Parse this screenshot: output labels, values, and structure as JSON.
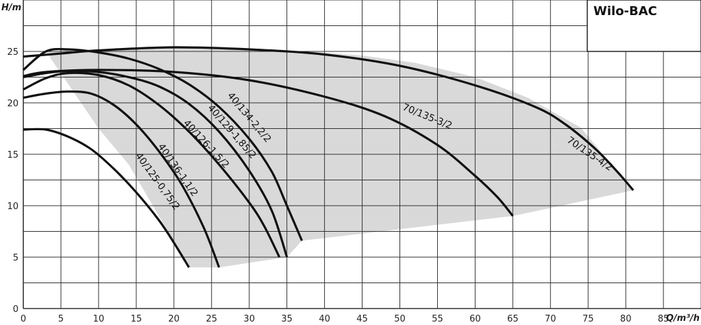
{
  "chart_data": {
    "type": "line",
    "title": "Wilo-BAC",
    "xlabel": "Q/m³/h",
    "ylabel": "H/m",
    "xlim": [
      0,
      90
    ],
    "ylim": [
      0,
      30
    ],
    "x_ticks": [
      0,
      5,
      10,
      15,
      20,
      25,
      30,
      35,
      40,
      45,
      50,
      55,
      60,
      65,
      70,
      75,
      80,
      85
    ],
    "y_ticks": [
      0,
      5,
      10,
      15,
      20,
      25
    ],
    "grid": true,
    "envelope": {
      "description_color": "#d9d9d9",
      "points": [
        [
          3,
          25.0
        ],
        [
          10,
          25.1
        ],
        [
          20,
          25.3
        ],
        [
          30,
          25.2
        ],
        [
          38,
          25.0
        ],
        [
          45,
          24.6
        ],
        [
          52,
          23.9
        ],
        [
          60,
          22.5
        ],
        [
          67,
          20.5
        ],
        [
          74,
          17.6
        ],
        [
          81,
          11.5
        ],
        [
          65,
          9.0
        ],
        [
          37,
          6.6
        ],
        [
          35,
          5.0
        ],
        [
          26,
          4.0
        ],
        [
          22,
          4.0
        ],
        [
          14,
          14.0
        ],
        [
          10,
          17.5
        ]
      ]
    },
    "series": [
      {
        "name": "40/125-0,75/2",
        "points": [
          [
            0,
            17.4
          ],
          [
            3,
            17.4
          ],
          [
            6,
            16.7
          ],
          [
            9,
            15.5
          ],
          [
            12,
            13.6
          ],
          [
            15,
            11.3
          ],
          [
            18,
            8.6
          ],
          [
            20,
            6.4
          ],
          [
            22,
            4.0
          ]
        ],
        "label_at": [
          17.5,
          12.2
        ],
        "label_angle": 54
      },
      {
        "name": "40/136-1,1/2",
        "points": [
          [
            0,
            20.5
          ],
          [
            3,
            20.9
          ],
          [
            6,
            21.1
          ],
          [
            9,
            20.9
          ],
          [
            12,
            19.8
          ],
          [
            15,
            17.9
          ],
          [
            18,
            15.3
          ],
          [
            21,
            12.1
          ],
          [
            24,
            7.8
          ],
          [
            26,
            4.0
          ]
        ],
        "label_at": [
          20.2,
          13.3
        ],
        "label_angle": 55
      },
      {
        "name": "40/126-1,5/2",
        "points": [
          [
            0,
            21.3
          ],
          [
            3,
            22.4
          ],
          [
            6,
            22.9
          ],
          [
            10,
            22.7
          ],
          [
            14,
            21.7
          ],
          [
            18,
            19.8
          ],
          [
            22,
            17.2
          ],
          [
            26,
            14.0
          ],
          [
            30,
            10.3
          ],
          [
            32,
            8.0
          ],
          [
            34,
            5.0
          ]
        ],
        "label_at": [
          24.0,
          15.8
        ],
        "label_angle": 47
      },
      {
        "name": "40/129-1,85/2",
        "points": [
          [
            0,
            22.5
          ],
          [
            3,
            22.9
          ],
          [
            6,
            23.1
          ],
          [
            10,
            23.0
          ],
          [
            14,
            22.5
          ],
          [
            18,
            21.6
          ],
          [
            22,
            19.9
          ],
          [
            26,
            17.2
          ],
          [
            30,
            13.4
          ],
          [
            33,
            9.5
          ],
          [
            35,
            5.0
          ]
        ],
        "label_at": [
          27.4,
          17.0
        ],
        "label_angle": 49
      },
      {
        "name": "40/134-2,2/2",
        "points": [
          [
            0,
            23.2
          ],
          [
            3,
            25.0
          ],
          [
            6,
            25.2
          ],
          [
            10,
            24.9
          ],
          [
            14,
            24.3
          ],
          [
            18,
            23.3
          ],
          [
            22,
            21.8
          ],
          [
            26,
            19.6
          ],
          [
            30,
            16.5
          ],
          [
            33,
            13.3
          ],
          [
            35,
            10.0
          ],
          [
            37,
            6.6
          ]
        ],
        "label_at": [
          29.7,
          18.4
        ],
        "label_angle": 50
      },
      {
        "name": "70/135-3/2",
        "points": [
          [
            0,
            22.6
          ],
          [
            3,
            23.0
          ],
          [
            10,
            23.2
          ],
          [
            20,
            23.0
          ],
          [
            30,
            22.2
          ],
          [
            40,
            20.6
          ],
          [
            48,
            18.7
          ],
          [
            55,
            15.9
          ],
          [
            60,
            12.9
          ],
          [
            63,
            10.8
          ],
          [
            65,
            9.0
          ]
        ],
        "label_at": [
          53.5,
          18.4
        ],
        "label_angle": 22
      },
      {
        "name": "70/135-4/2",
        "points": [
          [
            0,
            24.5
          ],
          [
            5,
            24.8
          ],
          [
            10,
            25.1
          ],
          [
            20,
            25.4
          ],
          [
            30,
            25.2
          ],
          [
            40,
            24.7
          ],
          [
            50,
            23.6
          ],
          [
            60,
            21.7
          ],
          [
            68,
            19.6
          ],
          [
            72,
            17.9
          ],
          [
            76,
            15.5
          ],
          [
            79,
            13.2
          ],
          [
            81,
            11.5
          ]
        ],
        "label_at": [
          75.0,
          14.8
        ],
        "label_angle": 34
      }
    ]
  }
}
